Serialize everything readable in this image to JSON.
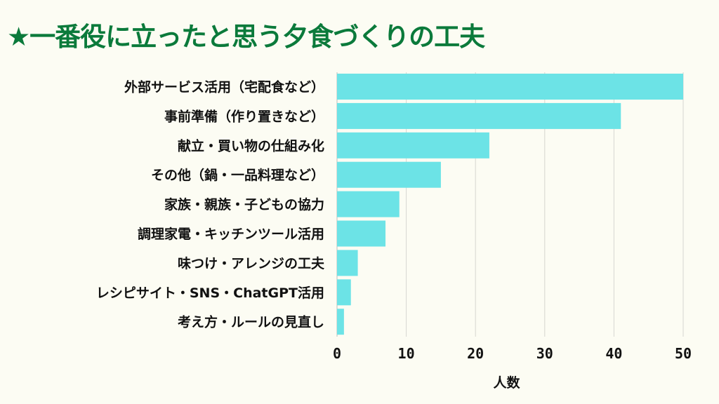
{
  "title": "★一番役に立ったと思う夕食づくりの工夫",
  "chart_data": {
    "type": "bar",
    "orientation": "horizontal",
    "title": "★一番役に立ったと思う夕食づくりの工夫",
    "categories": [
      "外部サービス活用（宅配食など）",
      "事前準備（作り置きなど）",
      "献立・買い物の仕組み化",
      "その他（鍋・一品料理など）",
      "家族・親族・子どもの協力",
      "調理家電・キッチンツール活用",
      "味つけ・アレンジの工夫",
      "レシピサイト・SNS・ChatGPT活用",
      "考え方・ルールの見直し"
    ],
    "values": [
      50,
      41,
      22,
      15,
      9,
      7,
      3,
      2,
      1
    ],
    "xlabel": "人数",
    "ylabel": "",
    "xlim": [
      0,
      50
    ],
    "xticks": [
      0,
      10,
      20,
      30,
      40,
      50
    ],
    "grid": true,
    "colors": {
      "bar": "#6ce3e6",
      "title": "#0b7a3b",
      "grid": "#d6d6d0",
      "background": "#fcfcf3"
    }
  }
}
